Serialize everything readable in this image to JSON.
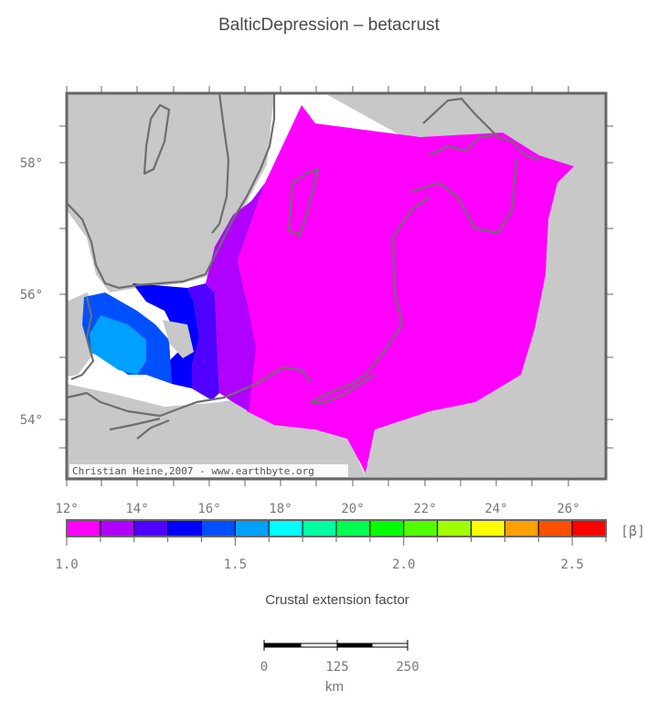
{
  "title": "BalticDepression – betacrust",
  "map": {
    "lat_labels": [
      "58°",
      "56°",
      "54°"
    ],
    "lon_labels": [
      "12°",
      "14°",
      "16°",
      "18°",
      "20°",
      "22°",
      "24°",
      "26°"
    ],
    "credit": "Christian Heine,2007 - www.earthbyte.org",
    "land_color": "#c8c8c8",
    "coast_color": "#6e6e6e",
    "zones": [
      {
        "name": "beta-1.0-1.1",
        "color": "#ff00ff"
      },
      {
        "name": "beta-1.1-1.2",
        "color": "#b000ff"
      },
      {
        "name": "beta-1.2-1.3",
        "color": "#5000ff"
      },
      {
        "name": "beta-1.3-1.4",
        "color": "#0000ff"
      },
      {
        "name": "beta-1.4-1.5",
        "color": "#0050ff"
      },
      {
        "name": "beta-1.5-1.6",
        "color": "#00a0ff"
      }
    ]
  },
  "colorbar": {
    "colors": [
      "#ff00ff",
      "#b000ff",
      "#5000ff",
      "#0000ff",
      "#0050ff",
      "#00a0ff",
      "#00ffff",
      "#00ffa0",
      "#00ff50",
      "#00ff00",
      "#50ff00",
      "#a0ff00",
      "#ffff00",
      "#ffa000",
      "#ff5000",
      "#ff0000"
    ],
    "tick_labels": [
      "1.0",
      "1.5",
      "2.0",
      "2.5"
    ],
    "unit": "[β]",
    "title": "Crustal extension factor"
  },
  "scalebar": {
    "labels": [
      "0",
      "125",
      "250"
    ],
    "unit": "km"
  }
}
